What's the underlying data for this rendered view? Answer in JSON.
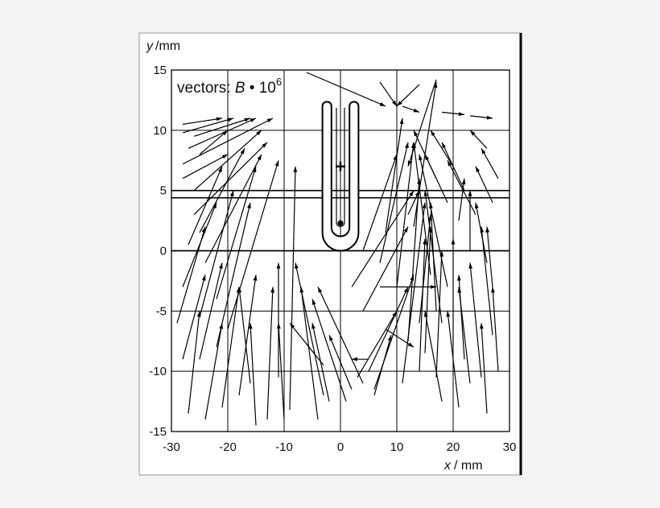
{
  "chart_data": {
    "type": "vector-field",
    "ylabel_var": "y",
    "ylabel_unit": "/mm",
    "xlabel_var": "x",
    "xlabel_unit": "/ mm",
    "annotation_prefix": "vectors: ",
    "annotation_var": "B",
    "annotation_op": " • 10",
    "annotation_exp": "6",
    "xlim": [
      -30,
      30
    ],
    "ylim": [
      -15,
      15
    ],
    "xticks": [
      "-30",
      "-20",
      "-10",
      "0",
      "10",
      "20",
      "30"
    ],
    "yticks": [
      "15",
      "10",
      "5",
      "0",
      "-5",
      "-10",
      "-15"
    ],
    "grid_x": [
      -20,
      -10,
      0,
      10,
      20
    ],
    "grid_y": [
      10,
      5,
      0,
      -5,
      -10
    ],
    "double_line_y": [
      5.0,
      4.4
    ],
    "thick_line_y": 0,
    "conductor": {
      "x_left_outer": -3.2,
      "x_left_inner": -1.6,
      "x_right_inner": 1.6,
      "x_right_outer": 3.2,
      "y_top": 12.0,
      "y_bottom_outer": 0.0,
      "y_bottom_inner": 1.2
    },
    "plus_marker": {
      "x": 0,
      "y": 7.0
    },
    "dot_marker": {
      "x": 0,
      "y": 2.3
    },
    "vectors": [
      [
        -6,
        14.8,
        8,
        12
      ],
      [
        7,
        14,
        10,
        12
      ],
      [
        14,
        13.8,
        10,
        12
      ],
      [
        17,
        14.2,
        12,
        7
      ],
      [
        11,
        12,
        14,
        11.5
      ],
      [
        18,
        11.5,
        22,
        11.3
      ],
      [
        23,
        11.2,
        27,
        11
      ],
      [
        -28,
        10.5,
        -21,
        11
      ],
      [
        -28,
        9.8,
        -19,
        11
      ],
      [
        -26,
        9.5,
        -16,
        11
      ],
      [
        -27,
        8.5,
        -15,
        11
      ],
      [
        -28,
        7.2,
        -12,
        11
      ],
      [
        -25,
        8,
        -20,
        10
      ],
      [
        -26,
        5,
        -14,
        10
      ],
      [
        -28,
        6,
        -20,
        8
      ],
      [
        -26,
        3,
        -13,
        9
      ],
      [
        -25,
        1.5,
        -17,
        8.5
      ],
      [
        -27,
        0.5,
        -21,
        7
      ],
      [
        -24,
        -1,
        -14,
        8
      ],
      [
        -28,
        -3,
        -22,
        4
      ],
      [
        -29,
        -6,
        -24,
        2
      ],
      [
        -25,
        -5.5,
        -19,
        5
      ],
      [
        -22,
        -4,
        -15,
        7
      ],
      [
        -28,
        -9,
        -24,
        -2
      ],
      [
        -25,
        -9,
        -21,
        -1
      ],
      [
        -22,
        -8,
        -16,
        4
      ],
      [
        -20,
        -6.5,
        -11,
        7.5
      ],
      [
        -27,
        -13.5,
        -25,
        -5
      ],
      [
        -24,
        -14,
        -21,
        -6
      ],
      [
        -21,
        -13,
        -18,
        -3
      ],
      [
        -18,
        -12,
        -15,
        -2
      ],
      [
        -15,
        -14.5,
        -16,
        -6
      ],
      [
        -13,
        -14,
        -12,
        -3
      ],
      [
        -11,
        -10.5,
        -11,
        -1
      ],
      [
        -10,
        -14,
        -11,
        -6
      ],
      [
        -16,
        -11,
        -18,
        -3
      ],
      [
        -9,
        -13.2,
        -8,
        7
      ],
      [
        -3,
        -12,
        -8,
        -1
      ],
      [
        -4,
        -14,
        -7,
        -3
      ],
      [
        -2,
        -12.5,
        -5,
        -6
      ],
      [
        -3,
        -9.5,
        -9,
        -6
      ],
      [
        1,
        -12.5,
        -5,
        -4
      ],
      [
        4,
        -11,
        -4,
        -3
      ],
      [
        2,
        -11.5,
        -2,
        -7
      ],
      [
        6,
        -12,
        9,
        -7
      ],
      [
        3,
        -10.5,
        10,
        -5
      ],
      [
        5,
        -10,
        12,
        -3
      ],
      [
        6,
        -11.5,
        13,
        -2
      ],
      [
        4,
        -5,
        12,
        2
      ],
      [
        2,
        -3,
        13,
        5
      ],
      [
        4,
        0,
        10,
        8
      ],
      [
        7,
        -1,
        12,
        9
      ],
      [
        8,
        1.5,
        11,
        11
      ],
      [
        10,
        -3,
        13,
        9
      ],
      [
        12,
        -7.5,
        14,
        6
      ],
      [
        11,
        -11,
        15,
        4
      ],
      [
        14,
        -10,
        15,
        1
      ],
      [
        14,
        -6,
        16,
        3
      ],
      [
        13,
        2,
        17,
        14
      ],
      [
        16,
        -2,
        13,
        9
      ],
      [
        15,
        -8.5,
        16,
        2
      ],
      [
        17,
        -10.5,
        18,
        0
      ],
      [
        18,
        -6,
        15,
        5
      ],
      [
        19,
        -3,
        14,
        8
      ],
      [
        17,
        -5,
        16,
        4
      ],
      [
        20,
        -8,
        20,
        1
      ],
      [
        22,
        -9,
        21,
        -2
      ],
      [
        23,
        -11,
        21,
        -3
      ],
      [
        25,
        -10.5,
        23,
        -1
      ],
      [
        27,
        -7,
        25,
        2
      ],
      [
        28,
        -10,
        27,
        -3
      ],
      [
        26,
        -13.5,
        25,
        -6
      ],
      [
        21,
        -13,
        19,
        -5
      ],
      [
        18,
        -12.5,
        15,
        -5
      ],
      [
        21,
        2.5,
        22,
        6
      ],
      [
        23,
        0,
        23,
        5
      ],
      [
        26,
        -1,
        24,
        4
      ],
      [
        27,
        -3,
        26,
        2
      ],
      [
        27,
        4,
        24,
        7
      ],
      [
        28,
        6,
        25,
        8.5
      ],
      [
        26,
        8.5,
        23,
        10
      ],
      [
        22,
        5,
        18,
        9
      ],
      [
        20,
        7,
        16,
        10
      ],
      [
        24,
        3,
        19,
        7.5
      ],
      [
        17,
        6,
        13,
        10
      ],
      [
        19,
        4,
        15,
        8
      ],
      [
        12,
        3,
        14,
        5
      ],
      [
        7,
        -3,
        17,
        -3
      ],
      [
        8,
        -6.5,
        13,
        -8
      ],
      [
        5,
        -9,
        2,
        -9
      ]
    ]
  }
}
